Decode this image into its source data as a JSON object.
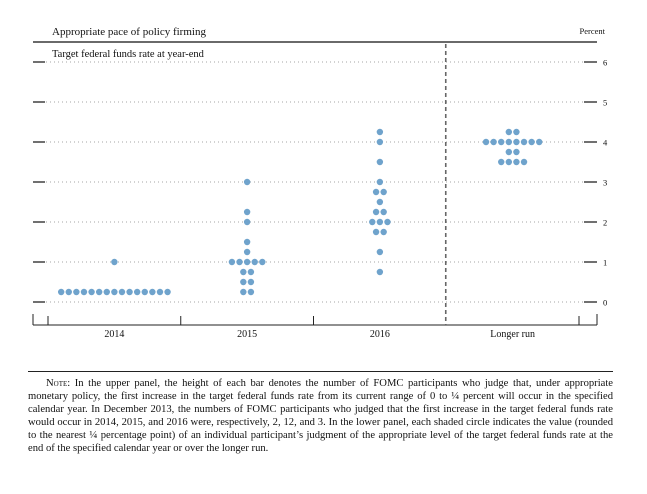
{
  "chart_data": {
    "type": "scatter",
    "subtype": "dot-plot",
    "title": "Appropriate pace of policy firming",
    "panel_label": "Target federal funds rate at year-end",
    "ylabel": "Percent",
    "ylim": [
      0,
      6
    ],
    "yticks": [
      0,
      1,
      2,
      3,
      4,
      5,
      6
    ],
    "grid": true,
    "categories": [
      "2014",
      "2015",
      "2016",
      "Longer run"
    ],
    "separator_after_category": "2016",
    "dot_color": "#6fa3cc",
    "series": [
      {
        "name": "2014",
        "points": [
          {
            "value": 1.0,
            "count": 1
          },
          {
            "value": 0.25,
            "count": 15
          }
        ]
      },
      {
        "name": "2015",
        "points": [
          {
            "value": 3.0,
            "count": 1
          },
          {
            "value": 2.25,
            "count": 1
          },
          {
            "value": 2.0,
            "count": 1
          },
          {
            "value": 1.5,
            "count": 1
          },
          {
            "value": 1.25,
            "count": 1
          },
          {
            "value": 1.0,
            "count": 5
          },
          {
            "value": 0.75,
            "count": 2
          },
          {
            "value": 0.5,
            "count": 2
          },
          {
            "value": 0.25,
            "count": 2
          }
        ]
      },
      {
        "name": "2016",
        "points": [
          {
            "value": 4.25,
            "count": 1
          },
          {
            "value": 4.0,
            "count": 1
          },
          {
            "value": 3.5,
            "count": 1
          },
          {
            "value": 3.0,
            "count": 1
          },
          {
            "value": 2.75,
            "count": 2
          },
          {
            "value": 2.5,
            "count": 1
          },
          {
            "value": 2.25,
            "count": 2
          },
          {
            "value": 2.0,
            "count": 3
          },
          {
            "value": 1.75,
            "count": 2
          },
          {
            "value": 1.25,
            "count": 1
          },
          {
            "value": 0.75,
            "count": 1
          }
        ]
      },
      {
        "name": "Longer run",
        "points": [
          {
            "value": 4.25,
            "count": 2
          },
          {
            "value": 4.0,
            "count": 8
          },
          {
            "value": 3.75,
            "count": 2
          },
          {
            "value": 3.5,
            "count": 4
          }
        ]
      }
    ]
  },
  "note": {
    "lead": "Note:",
    "text": "In the upper panel, the height of each bar denotes the number of FOMC participants who judge that, under appropriate monetary policy, the first increase in the target federal funds rate from its current range of 0 to ¼ percent will occur in the specified calendar year. In December 2013, the numbers of FOMC participants who judged that the first increase in the target federal funds rate would occur in 2014, 2015, and 2016 were, respectively, 2, 12, and 3. In the lower panel, each shaded circle indicates the value (rounded to the nearest ¼ percentage point) of an individual participant’s judgment of the appropriate level of the target federal funds rate at the end of the specified calendar year or over the longer run."
  }
}
